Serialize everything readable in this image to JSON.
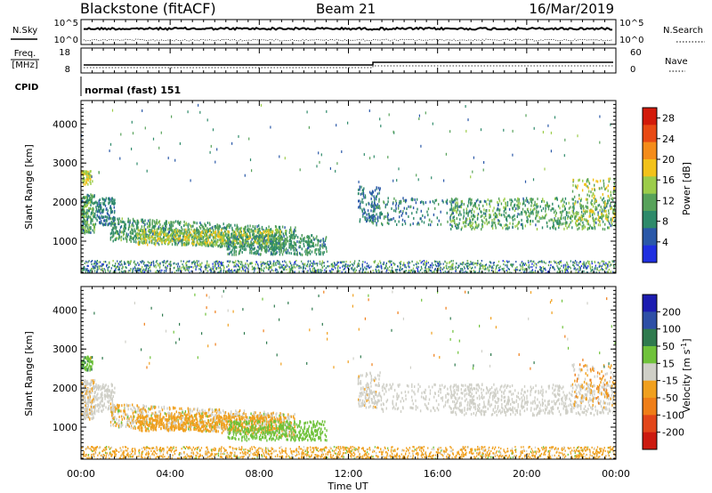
{
  "header": {
    "station": "Blackstone (fitACF)",
    "beam": "Beam 21",
    "date": "16/Mar/2019"
  },
  "noise_panel": {
    "left_label": "N.Sky",
    "right_label": "N.Search",
    "left_ticks": [
      "10^5",
      "10^0"
    ],
    "right_ticks": [
      "10^5",
      "10^0"
    ]
  },
  "freq_panel": {
    "left_label_line1": "Freq.",
    "left_label_line2": "[MHz]",
    "right_label": "Nave",
    "left_ticks": [
      "18",
      "8"
    ],
    "right_ticks": [
      "60",
      "0"
    ]
  },
  "cpid_panel": {
    "label": "CPID",
    "text": "normal (fast) 151"
  },
  "colors": {
    "power_scale": [
      "#1f2fe0",
      "#2a58a8",
      "#2e8a6a",
      "#57a25a",
      "#9ccc4a",
      "#f2c21a",
      "#f48c1a",
      "#e84a14",
      "#d21a0a"
    ],
    "velocity_scale": [
      "#1c1cb0",
      "#2e4fa6",
      "#2f7a4e",
      "#6fc23a",
      "#cfcfc7",
      "#f0a01e",
      "#ef7e18",
      "#e2461a",
      "#cc1a10"
    ]
  },
  "chart_data": [
    {
      "type": "heatmap",
      "name": "power",
      "x_ticks": [
        "00:00",
        "04:00",
        "08:00",
        "12:00",
        "16:00",
        "20:00",
        "00:00"
      ],
      "ylabel": "Slant Range [km]",
      "y_ticks": [
        "1000",
        "2000",
        "3000",
        "4000"
      ],
      "ylim": [
        180,
        4600
      ],
      "colorbar": {
        "label": "Power [dB]",
        "ticks": [
          "4",
          "8",
          "12",
          "16",
          "20",
          "24",
          "28"
        ],
        "range": [
          0,
          30
        ]
      }
    },
    {
      "type": "heatmap",
      "name": "velocity",
      "x_ticks": [
        "00:00",
        "04:00",
        "08:00",
        "12:00",
        "16:00",
        "20:00",
        "00:00"
      ],
      "xlabel": "Time UT",
      "ylabel": "Slant Range [km]",
      "y_ticks": [
        "1000",
        "2000",
        "3000",
        "4000"
      ],
      "ylim": [
        180,
        4600
      ],
      "colorbar": {
        "label_main": "Velocity [m s",
        "label_exp": "-1",
        "label_end": "]",
        "ticks": [
          "200",
          "100",
          "50",
          "15",
          "-15",
          "-50",
          "-100",
          "-200"
        ]
      }
    }
  ]
}
